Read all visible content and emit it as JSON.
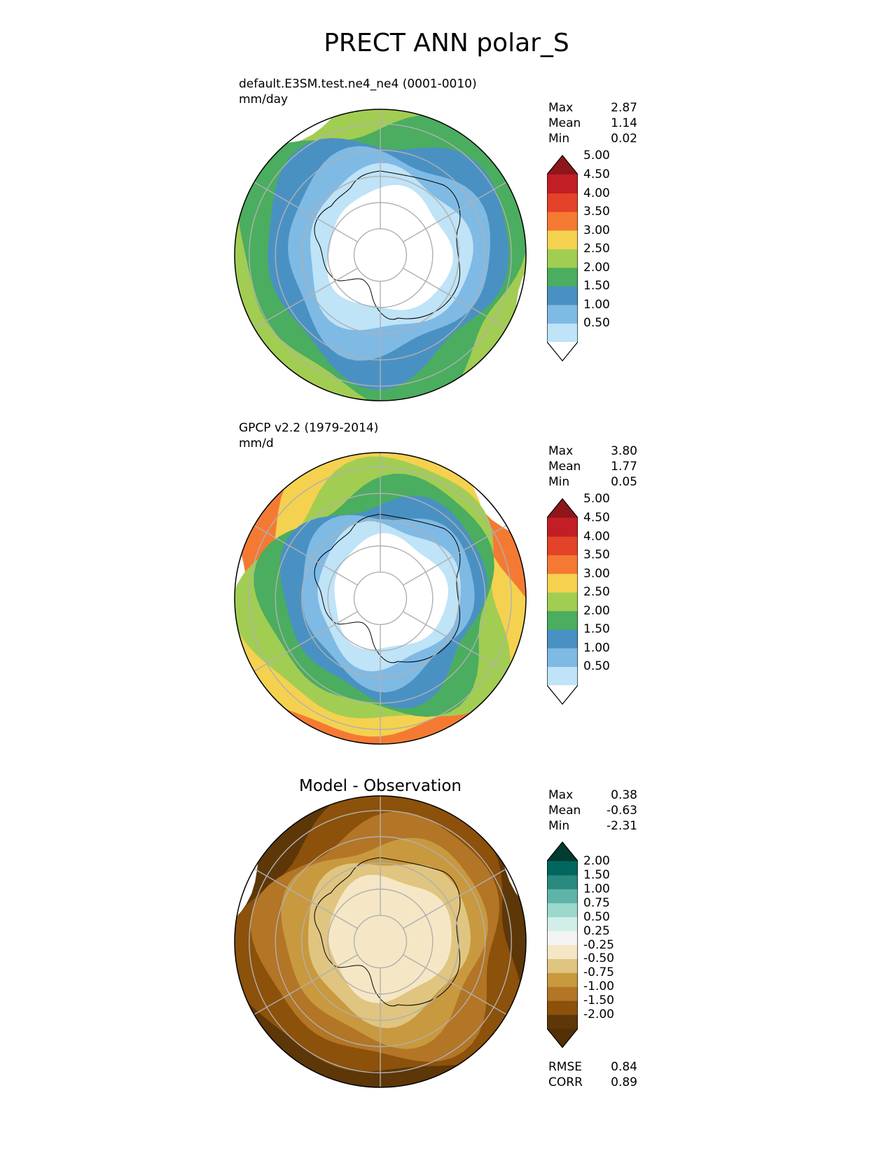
{
  "figure_title": "PRECT ANN polar_S",
  "panels": [
    {
      "title_line1": "default.E3SM.test.ne4_ne4 (0001-0010)",
      "title_line2": "mm/day",
      "stats": [
        {
          "label": "Max",
          "value": "2.87"
        },
        {
          "label": "Mean",
          "value": "1.14"
        },
        {
          "label": "Min",
          "value": "0.02"
        }
      ]
    },
    {
      "title_line1": "GPCP v2.2 (1979-2014)",
      "title_line2": "mm/d",
      "stats": [
        {
          "label": "Max",
          "value": "3.80"
        },
        {
          "label": "Mean",
          "value": "1.77"
        },
        {
          "label": "Min",
          "value": "0.05"
        }
      ]
    },
    {
      "center_title": "Model - Observation",
      "stats": [
        {
          "label": "Max",
          "value": "0.38"
        },
        {
          "label": "Mean",
          "value": "-0.63"
        },
        {
          "label": "Min",
          "value": "-2.31"
        }
      ],
      "metrics": [
        {
          "label": "RMSE",
          "value": "0.84"
        },
        {
          "label": "CORR",
          "value": "0.89"
        }
      ]
    }
  ],
  "chart_data": [
    {
      "type": "heatmap",
      "projection": "south polar stereographic",
      "title": "default.E3SM.test.ne4_ne4 (0001-0010)",
      "units": "mm/day",
      "colorbar": {
        "levels": [
          "0.50",
          "1.00",
          "1.50",
          "2.00",
          "2.50",
          "3.00",
          "3.50",
          "4.00",
          "4.50",
          "5.00"
        ],
        "colors": [
          "#ffffff",
          "#bfe3f7",
          "#7fbae5",
          "#4a91c3",
          "#4bad5f",
          "#a2cd53",
          "#f5d150",
          "#f47a33",
          "#e34329",
          "#c21e25",
          "#8f161b"
        ],
        "extend": "both"
      },
      "bands_pole_to_edge": [
        {
          "value_range": [
            0.0,
            0.5
          ]
        },
        {
          "value_range": [
            0.5,
            1.0
          ]
        },
        {
          "value_range": [
            1.0,
            1.5
          ]
        },
        {
          "value_range": [
            1.5,
            2.0
          ]
        },
        {
          "value_range": [
            2.0,
            2.5
          ]
        },
        {
          "value_range": [
            2.5,
            3.0
          ]
        }
      ],
      "max": 2.87,
      "mean": 1.14,
      "min": 0.02
    },
    {
      "type": "heatmap",
      "projection": "south polar stereographic",
      "title": "GPCP v2.2 (1979-2014)",
      "units": "mm/d",
      "colorbar": {
        "levels": [
          "0.50",
          "1.00",
          "1.50",
          "2.00",
          "2.50",
          "3.00",
          "3.50",
          "4.00",
          "4.50",
          "5.00"
        ],
        "colors": [
          "#ffffff",
          "#bfe3f7",
          "#7fbae5",
          "#4a91c3",
          "#4bad5f",
          "#a2cd53",
          "#f5d150",
          "#f47a33",
          "#e34329",
          "#c21e25",
          "#8f161b"
        ],
        "extend": "both"
      },
      "bands_pole_to_edge": [
        {
          "value_range": [
            0.0,
            0.5
          ]
        },
        {
          "value_range": [
            0.5,
            1.0
          ]
        },
        {
          "value_range": [
            1.0,
            1.5
          ]
        },
        {
          "value_range": [
            1.5,
            2.0
          ]
        },
        {
          "value_range": [
            2.0,
            2.5
          ]
        },
        {
          "value_range": [
            2.5,
            3.0
          ]
        },
        {
          "value_range": [
            3.0,
            3.5
          ]
        },
        {
          "value_range": [
            3.5,
            4.0
          ]
        }
      ],
      "max": 3.8,
      "mean": 1.77,
      "min": 0.05
    },
    {
      "type": "heatmap",
      "projection": "south polar stereographic",
      "title": "Model - Observation",
      "colorbar": {
        "levels": [
          "-2.00",
          "-1.50",
          "-1.00",
          "-0.75",
          "-0.50",
          "-0.25",
          "0.25",
          "0.50",
          "0.75",
          "1.00",
          "1.50",
          "2.00"
        ],
        "colors": [
          "#543005",
          "#5d3708",
          "#8c510a",
          "#b37526",
          "#c9993f",
          "#e0c580",
          "#f5e7c5",
          "#f4f4f4",
          "#d3eee9",
          "#9cd8cc",
          "#5fb4aa",
          "#2a8a7f",
          "#01665e",
          "#003c30"
        ],
        "extend": "both"
      },
      "bands_pole_to_edge": [
        {
          "value_range": [
            -0.25,
            0.25
          ]
        },
        {
          "value_range": [
            -0.5,
            -0.25
          ]
        },
        {
          "value_range": [
            -0.75,
            -0.5
          ]
        },
        {
          "value_range": [
            -1.0,
            -0.75
          ]
        },
        {
          "value_range": [
            -1.5,
            -1.0
          ]
        },
        {
          "value_range": [
            -2.0,
            -1.5
          ]
        }
      ],
      "max": 0.38,
      "mean": -0.63,
      "min": -2.31,
      "rmse": 0.84,
      "corr": 0.89
    }
  ]
}
